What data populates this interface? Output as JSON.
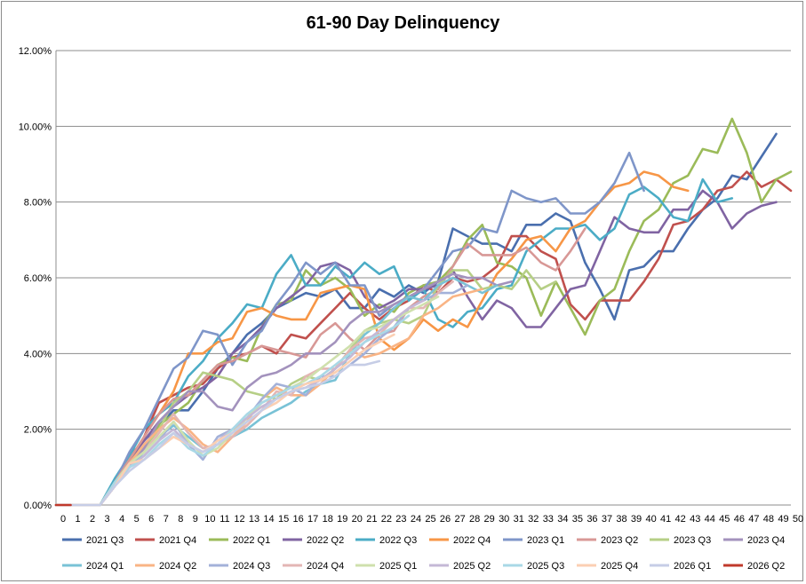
{
  "chart_data": {
    "type": "line",
    "title": "61-90 Day Delinquency",
    "xlabel": "",
    "ylabel": "",
    "x": [
      0,
      1,
      2,
      3,
      4,
      5,
      6,
      7,
      8,
      9,
      10,
      11,
      12,
      13,
      14,
      15,
      16,
      17,
      18,
      19,
      20,
      21,
      22,
      23,
      24,
      25,
      26,
      27,
      28,
      29,
      30,
      31,
      32,
      33,
      34,
      35,
      36,
      37,
      38,
      39,
      40,
      41,
      42,
      43,
      44,
      45,
      46,
      47,
      48,
      49,
      50
    ],
    "xlim": [
      0,
      50
    ],
    "ylim": [
      0,
      0.12
    ],
    "yticks": [
      0,
      0.02,
      0.04,
      0.06,
      0.08,
      0.1,
      0.12
    ],
    "ytick_labels": [
      "0.00%",
      "2.00%",
      "4.00%",
      "6.00%",
      "8.00%",
      "10.00%",
      "12.00%"
    ],
    "grid": "horizontal",
    "legend_position": "bottom",
    "series": [
      {
        "name": "2021 Q3",
        "color": "#4a6fae",
        "values": [
          0,
          0,
          0,
          0,
          0.006,
          0.013,
          0.017,
          0.021,
          0.025,
          0.025,
          0.03,
          0.036,
          0.04,
          0.045,
          0.048,
          0.052,
          0.054,
          0.056,
          0.055,
          0.057,
          0.052,
          0.052,
          0.057,
          0.055,
          0.058,
          0.056,
          0.059,
          0.073,
          0.071,
          0.069,
          0.069,
          0.067,
          0.074,
          0.074,
          0.077,
          0.075,
          0.064,
          0.057,
          0.049,
          0.062,
          0.063,
          0.067,
          0.067,
          0.073,
          0.078,
          0.081,
          0.087,
          0.086,
          0.092,
          0.098,
          null
        ]
      },
      {
        "name": "2021 Q4",
        "color": "#c0504d",
        "values": [
          0,
          0,
          0,
          0,
          0.005,
          0.011,
          0.018,
          0.027,
          0.029,
          0.031,
          0.032,
          0.036,
          0.039,
          0.04,
          0.042,
          0.04,
          0.045,
          0.044,
          0.048,
          0.052,
          0.056,
          0.052,
          0.049,
          0.052,
          0.054,
          0.058,
          0.056,
          0.06,
          0.059,
          0.06,
          0.063,
          0.071,
          0.071,
          0.067,
          0.065,
          0.053,
          0.049,
          0.054,
          0.054,
          0.054,
          0.059,
          0.065,
          0.074,
          0.075,
          0.078,
          0.083,
          0.084,
          0.088,
          0.084,
          0.086,
          0.083
        ]
      },
      {
        "name": "2022 Q1",
        "color": "#9bbb59",
        "values": [
          0,
          0,
          0,
          0,
          0.006,
          0.012,
          0.015,
          0.021,
          0.024,
          0.027,
          0.033,
          0.037,
          0.039,
          0.038,
          0.047,
          0.053,
          0.054,
          0.062,
          0.058,
          0.06,
          0.057,
          0.05,
          0.053,
          0.051,
          0.056,
          0.058,
          0.059,
          0.063,
          0.07,
          0.074,
          0.064,
          0.063,
          0.06,
          0.05,
          0.059,
          0.052,
          0.045,
          0.054,
          0.057,
          0.067,
          0.075,
          0.078,
          0.085,
          0.087,
          0.094,
          0.093,
          0.102,
          0.093,
          0.08,
          0.086,
          0.088
        ]
      },
      {
        "name": "2022 Q2",
        "color": "#8064a2",
        "values": [
          0,
          0,
          0,
          0,
          0.005,
          0.012,
          0.017,
          0.022,
          0.026,
          0.029,
          0.031,
          0.034,
          0.04,
          0.043,
          0.047,
          0.052,
          0.055,
          0.058,
          0.063,
          0.064,
          0.062,
          0.055,
          0.052,
          0.054,
          0.057,
          0.057,
          0.058,
          0.062,
          0.055,
          0.049,
          0.054,
          0.052,
          0.047,
          0.047,
          0.052,
          0.057,
          0.058,
          0.067,
          0.076,
          0.073,
          0.072,
          0.072,
          0.078,
          0.078,
          0.083,
          0.08,
          0.073,
          0.077,
          0.079,
          0.08,
          null
        ]
      },
      {
        "name": "2022 Q3",
        "color": "#4bacc6",
        "values": [
          0,
          0,
          0,
          0,
          0.007,
          0.013,
          0.02,
          0.024,
          0.027,
          0.034,
          0.038,
          0.044,
          0.048,
          0.053,
          0.052,
          0.061,
          0.066,
          0.058,
          0.058,
          0.063,
          0.06,
          0.064,
          0.061,
          0.063,
          0.054,
          0.057,
          0.049,
          0.047,
          0.051,
          0.052,
          0.057,
          0.058,
          0.067,
          0.07,
          0.073,
          0.073,
          0.074,
          0.07,
          0.073,
          0.082,
          0.084,
          0.081,
          0.076,
          0.075,
          0.086,
          0.08,
          0.081,
          null,
          null,
          null,
          null
        ]
      },
      {
        "name": "2022 Q4",
        "color": "#f79646",
        "values": [
          0,
          0,
          0,
          0,
          0.006,
          0.012,
          0.018,
          0.024,
          0.03,
          0.04,
          0.04,
          0.043,
          0.044,
          0.051,
          0.052,
          0.05,
          0.049,
          0.049,
          0.056,
          0.057,
          0.058,
          0.057,
          0.044,
          0.041,
          0.044,
          0.049,
          0.046,
          0.049,
          0.047,
          0.054,
          0.061,
          0.065,
          0.07,
          0.071,
          0.067,
          0.073,
          0.075,
          0.08,
          0.084,
          0.085,
          0.088,
          0.087,
          0.084,
          0.083,
          null,
          null,
          null,
          null,
          null,
          null,
          null
        ]
      },
      {
        "name": "2023 Q1",
        "color": "#7f96c9",
        "values": [
          0,
          0,
          0,
          0,
          0.006,
          0.014,
          0.02,
          0.028,
          0.036,
          0.039,
          0.046,
          0.045,
          0.037,
          0.043,
          0.046,
          0.053,
          0.058,
          0.064,
          0.061,
          0.064,
          0.058,
          0.058,
          0.05,
          0.053,
          0.055,
          0.057,
          0.062,
          0.067,
          0.068,
          0.073,
          0.072,
          0.083,
          0.081,
          0.08,
          0.081,
          0.077,
          0.077,
          0.08,
          0.085,
          0.093,
          0.083,
          null,
          null,
          null,
          null,
          null,
          null,
          null,
          null,
          null,
          null
        ]
      },
      {
        "name": "2023 Q2",
        "color": "#d89896",
        "values": [
          0,
          0,
          0,
          0,
          0.006,
          0.012,
          0.018,
          0.024,
          0.028,
          0.029,
          0.033,
          0.037,
          0.038,
          0.04,
          0.042,
          0.041,
          0.04,
          0.039,
          0.045,
          0.048,
          0.044,
          0.041,
          0.045,
          0.046,
          0.052,
          0.055,
          0.057,
          0.063,
          0.069,
          0.066,
          0.066,
          0.066,
          0.068,
          0.064,
          0.062,
          0.067,
          0.073,
          null,
          null,
          null,
          null,
          null,
          null,
          null,
          null,
          null,
          null,
          null,
          null,
          null,
          null
        ]
      },
      {
        "name": "2023 Q3",
        "color": "#b6cf86",
        "values": [
          0,
          0,
          0,
          0,
          0.006,
          0.011,
          0.015,
          0.02,
          0.027,
          0.03,
          0.035,
          0.034,
          0.033,
          0.03,
          0.029,
          0.028,
          0.032,
          0.034,
          0.033,
          0.036,
          0.041,
          0.046,
          0.048,
          0.049,
          0.048,
          0.05,
          0.058,
          0.062,
          0.062,
          0.057,
          0.058,
          0.057,
          0.062,
          0.057,
          0.059,
          null,
          null,
          null,
          null,
          null,
          null,
          null,
          null,
          null,
          null,
          null,
          null,
          null,
          null,
          null,
          null
        ]
      },
      {
        "name": "2023 Q4",
        "color": "#a392bd",
        "values": [
          0,
          0,
          0,
          0,
          0.006,
          0.01,
          0.015,
          0.022,
          0.026,
          0.03,
          0.03,
          0.026,
          0.025,
          0.031,
          0.034,
          0.035,
          0.037,
          0.04,
          0.04,
          0.043,
          0.048,
          0.051,
          0.051,
          0.053,
          0.055,
          0.057,
          0.059,
          0.061,
          0.06,
          0.06,
          0.058,
          0.059,
          null,
          null,
          null,
          null,
          null,
          null,
          null,
          null,
          null,
          null,
          null,
          null,
          null,
          null,
          null,
          null,
          null,
          null,
          null
        ]
      },
      {
        "name": "2024 Q1",
        "color": "#79c2d6",
        "values": [
          0,
          0,
          0,
          0,
          0.006,
          0.01,
          0.014,
          0.018,
          0.021,
          0.018,
          0.015,
          0.016,
          0.018,
          0.02,
          0.023,
          0.025,
          0.027,
          0.03,
          0.032,
          0.033,
          0.04,
          0.045,
          0.048,
          0.052,
          0.055,
          0.054,
          0.058,
          0.06,
          0.058,
          0.056,
          0.058,
          null,
          null,
          null,
          null,
          null,
          null,
          null,
          null,
          null,
          null,
          null,
          null,
          null,
          null,
          null,
          null,
          null,
          null,
          null,
          null
        ]
      },
      {
        "name": "2024 Q2",
        "color": "#f9b485",
        "values": [
          0,
          0,
          0,
          0,
          0.005,
          0.011,
          0.016,
          0.02,
          0.023,
          0.02,
          0.016,
          0.014,
          0.018,
          0.022,
          0.028,
          0.031,
          0.029,
          0.029,
          0.032,
          0.036,
          0.041,
          0.039,
          0.04,
          0.042,
          0.044,
          0.05,
          0.052,
          0.055,
          0.056,
          0.057,
          null,
          null,
          null,
          null,
          null,
          null,
          null,
          null,
          null,
          null,
          null,
          null,
          null,
          null,
          null,
          null,
          null,
          null,
          null,
          null,
          null
        ]
      },
      {
        "name": "2024 Q3",
        "color": "#a3b1d9",
        "values": [
          0,
          0,
          0,
          0,
          0.006,
          0.01,
          0.013,
          0.017,
          0.022,
          0.016,
          0.012,
          0.018,
          0.02,
          0.023,
          0.028,
          0.032,
          0.031,
          0.029,
          0.034,
          0.034,
          0.037,
          0.04,
          0.044,
          0.047,
          0.052,
          0.054,
          0.056,
          0.056,
          0.058,
          null,
          null,
          null,
          null,
          null,
          null,
          null,
          null,
          null,
          null,
          null,
          null,
          null,
          null,
          null,
          null,
          null,
          null,
          null,
          null,
          null,
          null
        ]
      },
      {
        "name": "2024 Q4",
        "color": "#e3b6b4",
        "values": [
          0,
          0,
          0,
          0,
          0.005,
          0.011,
          0.014,
          0.019,
          0.024,
          0.019,
          0.015,
          0.016,
          0.018,
          0.021,
          0.025,
          0.03,
          0.029,
          0.034,
          0.036,
          0.036,
          0.041,
          0.044,
          0.045,
          0.049,
          0.052,
          0.052,
          0.056,
          0.059,
          null,
          null,
          null,
          null,
          null,
          null,
          null,
          null,
          null,
          null,
          null,
          null,
          null,
          null,
          null,
          null,
          null,
          null,
          null,
          null,
          null,
          null,
          null
        ]
      },
      {
        "name": "2025 Q1",
        "color": "#cfe0ad",
        "values": [
          0,
          0,
          0,
          0,
          0.006,
          0.011,
          0.014,
          0.018,
          0.022,
          0.017,
          0.013,
          0.015,
          0.019,
          0.023,
          0.027,
          0.029,
          0.031,
          0.033,
          0.036,
          0.039,
          0.042,
          0.046,
          0.047,
          0.049,
          0.051,
          0.053,
          0.055,
          null,
          null,
          null,
          null,
          null,
          null,
          null,
          null,
          null,
          null,
          null,
          null,
          null,
          null,
          null,
          null,
          null,
          null,
          null,
          null,
          null,
          null,
          null,
          null
        ]
      },
      {
        "name": "2025 Q2",
        "color": "#c4b8d6",
        "values": [
          0,
          0,
          0,
          0,
          0.005,
          0.01,
          0.013,
          0.017,
          0.02,
          0.016,
          0.014,
          0.017,
          0.02,
          0.023,
          0.026,
          0.028,
          0.03,
          0.031,
          0.033,
          0.036,
          0.039,
          0.043,
          0.046,
          0.049,
          0.052,
          0.054,
          null,
          null,
          null,
          null,
          null,
          null,
          null,
          null,
          null,
          null,
          null,
          null,
          null,
          null,
          null,
          null,
          null,
          null,
          null,
          null,
          null,
          null,
          null,
          null,
          null
        ]
      },
      {
        "name": "2025 Q3",
        "color": "#a9d8e6",
        "values": [
          0,
          0,
          0,
          0,
          0.006,
          0.01,
          0.012,
          0.016,
          0.019,
          0.015,
          0.013,
          0.016,
          0.02,
          0.024,
          0.027,
          0.029,
          0.031,
          0.032,
          0.034,
          0.037,
          0.04,
          0.043,
          0.045,
          0.047,
          0.05,
          null,
          null,
          null,
          null,
          null,
          null,
          null,
          null,
          null,
          null,
          null,
          null,
          null,
          null,
          null,
          null,
          null,
          null,
          null,
          null,
          null,
          null,
          null,
          null,
          null,
          null
        ]
      },
      {
        "name": "2025 Q4",
        "color": "#fbcfb3",
        "values": [
          0,
          0,
          0,
          0,
          0.005,
          0.011,
          0.012,
          0.015,
          0.018,
          0.016,
          0.014,
          0.017,
          0.019,
          0.022,
          0.025,
          0.027,
          0.03,
          0.032,
          0.033,
          0.035,
          0.038,
          0.041,
          0.043,
          0.045,
          null,
          null,
          null,
          null,
          null,
          null,
          null,
          null,
          null,
          null,
          null,
          null,
          null,
          null,
          null,
          null,
          null,
          null,
          null,
          null,
          null,
          null,
          null,
          null,
          null,
          null,
          null
        ]
      },
      {
        "name": "2026 Q1",
        "color": "#c6cde6",
        "values": [
          0,
          0,
          0,
          0,
          0.005,
          0.009,
          0.012,
          0.015,
          0.019,
          0.016,
          0.014,
          0.016,
          0.019,
          0.022,
          0.025,
          0.028,
          0.03,
          0.031,
          0.032,
          0.034,
          0.037,
          0.037,
          0.038,
          null,
          null,
          null,
          null,
          null,
          null,
          null,
          null,
          null,
          null,
          null,
          null,
          null,
          null,
          null,
          null,
          null,
          null,
          null,
          null,
          null,
          null,
          null,
          null,
          null,
          null,
          null,
          null
        ]
      },
      {
        "name": "2026 Q2",
        "color": "#c0392b",
        "values": [
          0,
          0,
          null,
          null,
          null,
          null,
          null,
          null,
          null,
          null,
          null,
          null,
          null,
          null,
          null,
          null,
          null,
          null,
          null,
          null,
          null,
          null,
          null,
          null,
          null,
          null,
          null,
          null,
          null,
          null,
          null,
          null,
          null,
          null,
          null,
          null,
          null,
          null,
          null,
          null,
          null,
          null,
          null,
          null,
          null,
          null,
          null,
          null,
          null,
          null,
          null
        ]
      }
    ]
  }
}
